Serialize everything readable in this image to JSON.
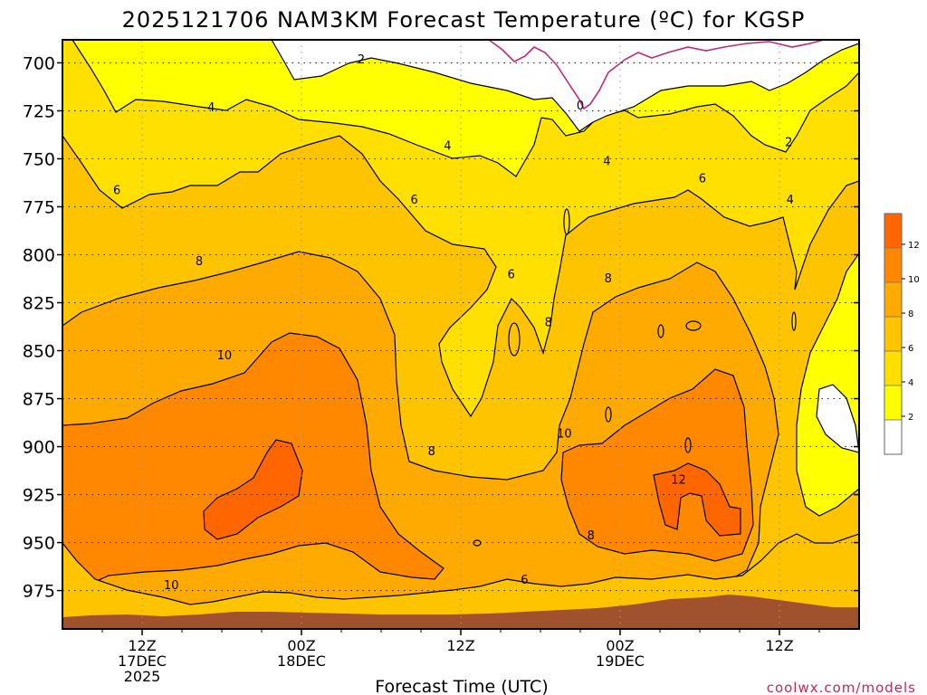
{
  "chart_data": {
    "type": "heatmap",
    "title": "2025121706 NAM3KM Forecast Temperature (ºC) for KGSP",
    "xlabel": "Forecast Time (UTC)",
    "ylabel": "",
    "credit": "coolwx.com/models",
    "x_range_hours": [
      6,
      66
    ],
    "y_range_hpa": [
      688,
      995
    ],
    "y_scale": "pressure (increasing downward)",
    "x_ticks": [
      {
        "hour": 12,
        "lines": [
          "12Z",
          "17DEC",
          "2025"
        ]
      },
      {
        "hour": 24,
        "lines": [
          "00Z",
          "18DEC"
        ]
      },
      {
        "hour": 36,
        "lines": [
          "12Z"
        ]
      },
      {
        "hour": 48,
        "lines": [
          "00Z",
          "19DEC"
        ]
      },
      {
        "hour": 60,
        "lines": [
          "12Z"
        ]
      }
    ],
    "y_ticks": [
      700,
      725,
      750,
      775,
      800,
      825,
      850,
      875,
      900,
      925,
      950,
      975
    ],
    "grid": true,
    "contour_levels": [
      0,
      2,
      4,
      6,
      8,
      10,
      12
    ],
    "contour_labels": [
      {
        "text": "2",
        "hour": 28.5,
        "hpa": 698
      },
      {
        "text": "0",
        "hour": 45,
        "hpa": 722
      },
      {
        "text": "2",
        "hour": 60.7,
        "hpa": 741
      },
      {
        "text": "4",
        "hour": 17.2,
        "hpa": 723
      },
      {
        "text": "4",
        "hour": 35,
        "hpa": 743
      },
      {
        "text": "4",
        "hour": 47,
        "hpa": 751
      },
      {
        "text": "4",
        "hour": 60.8,
        "hpa": 771
      },
      {
        "text": "6",
        "hour": 10.1,
        "hpa": 766
      },
      {
        "text": "6",
        "hour": 32.5,
        "hpa": 771
      },
      {
        "text": "6",
        "hour": 54.2,
        "hpa": 760
      },
      {
        "text": "6",
        "hour": 39.8,
        "hpa": 810
      },
      {
        "text": "6",
        "hour": 40.8,
        "hpa": 969
      },
      {
        "text": "8",
        "hour": 16.3,
        "hpa": 803
      },
      {
        "text": "8",
        "hour": 47.1,
        "hpa": 812
      },
      {
        "text": "8",
        "hour": 42.6,
        "hpa": 835
      },
      {
        "text": "8",
        "hour": 33.8,
        "hpa": 902
      },
      {
        "text": "8",
        "hour": 45.8,
        "hpa": 946
      },
      {
        "text": "10",
        "hour": 18.2,
        "hpa": 852
      },
      {
        "text": "10",
        "hour": 43.8,
        "hpa": 893
      },
      {
        "text": "10",
        "hour": 14.2,
        "hpa": 972
      },
      {
        "text": "12",
        "hour": 52.4,
        "hpa": 917
      }
    ],
    "colorbar": {
      "labels": [
        "12",
        "10",
        "8",
        "6",
        "4",
        "2"
      ],
      "colors": [
        "#ff6600",
        "#ff8800",
        "#ffaa00",
        "#ffc400",
        "#ffe000",
        "#ffff00",
        "#ffffff"
      ]
    },
    "surface_color": "#a0522d",
    "zero_line_color": "#c0287a"
  }
}
